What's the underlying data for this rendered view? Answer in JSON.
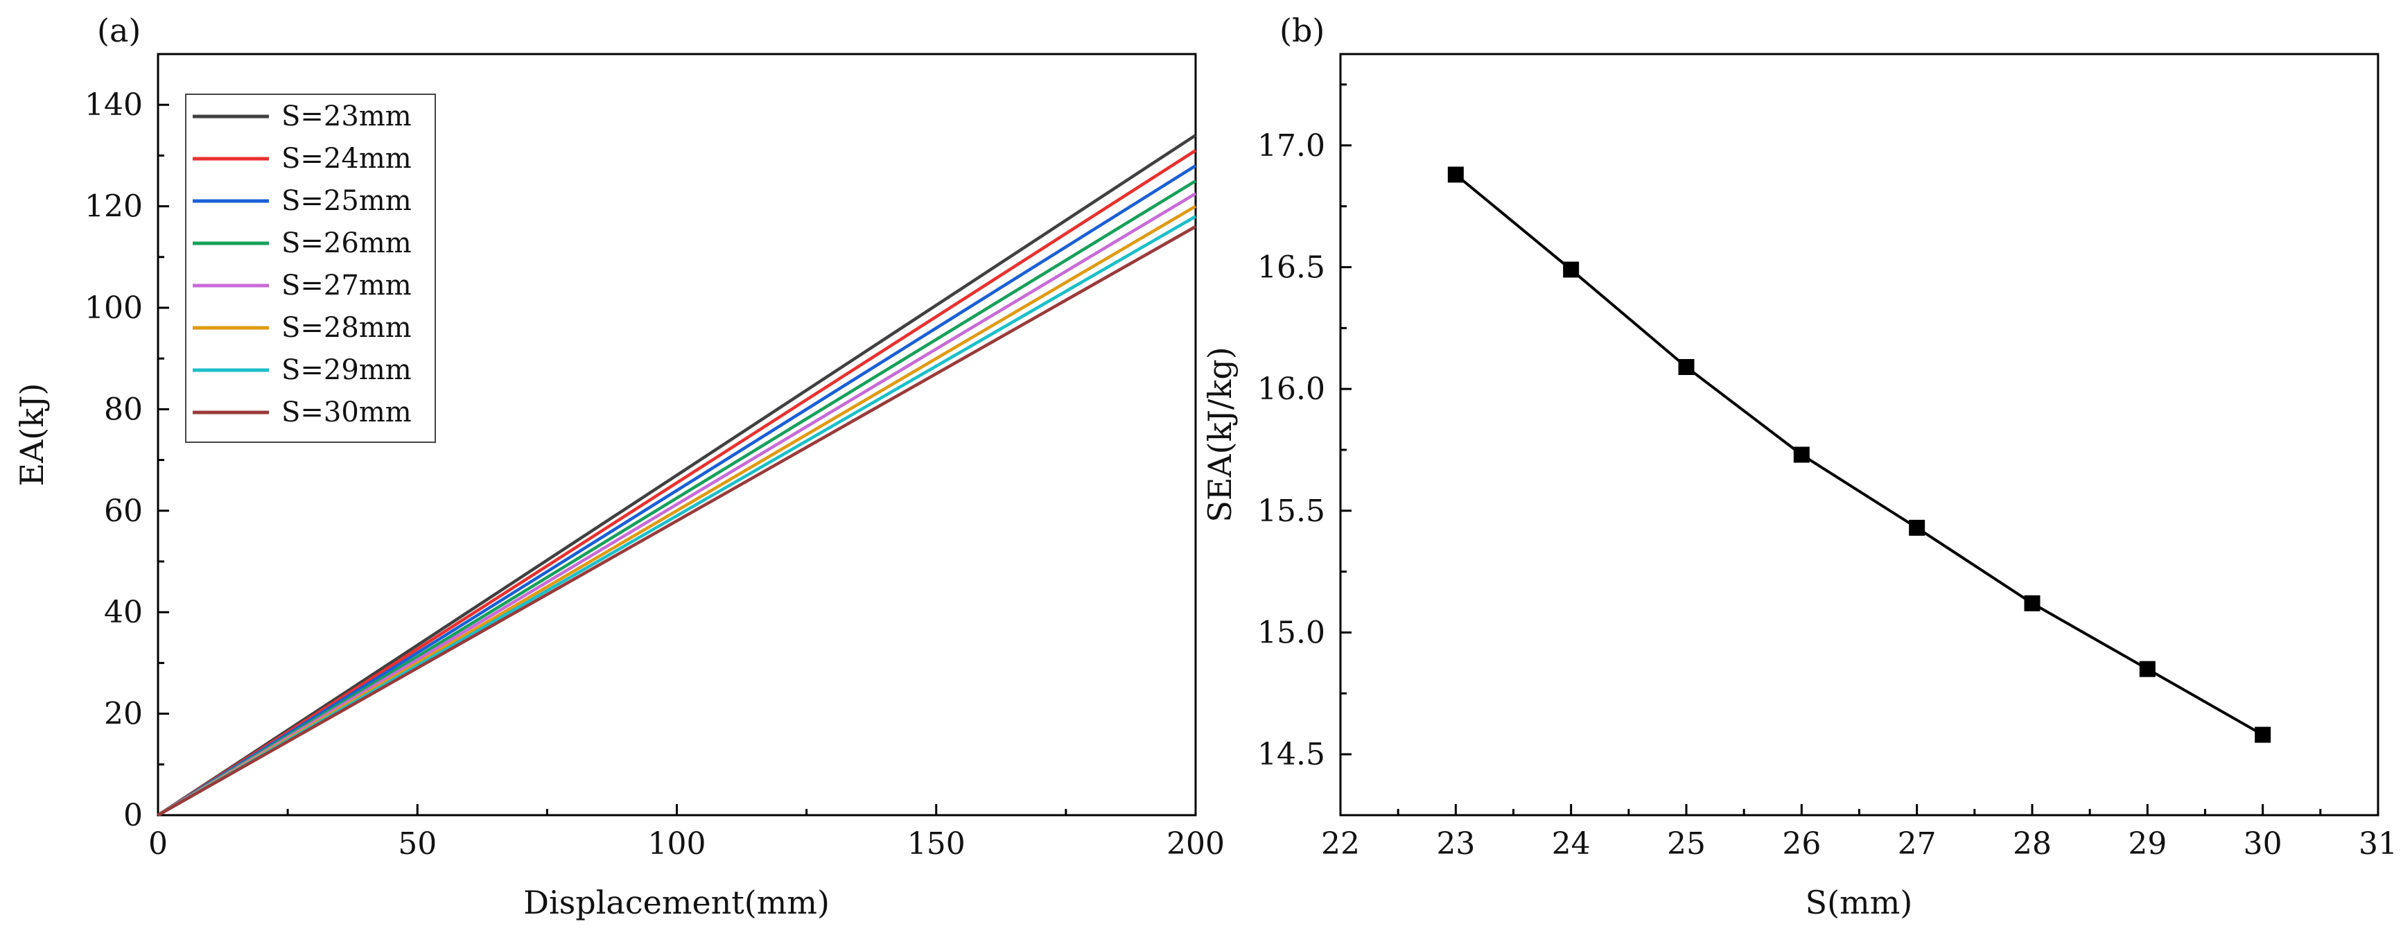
{
  "chart_data": [
    {
      "panel": "(a)",
      "type": "line",
      "xlabel": "Displacement(mm)",
      "ylabel": "EA(kJ)",
      "xlim": [
        0,
        200
      ],
      "ylim": [
        0,
        150
      ],
      "xticks": [
        0,
        50,
        100,
        150,
        200
      ],
      "yticks": [
        0,
        20,
        40,
        60,
        80,
        100,
        120,
        140
      ],
      "legend_position": "top-left",
      "series": [
        {
          "name": "S=23mm",
          "color": "#404040",
          "x": [
            0,
            200
          ],
          "y": [
            0,
            134
          ]
        },
        {
          "name": "S=24mm",
          "color": "#e8312f",
          "x": [
            0,
            200
          ],
          "y": [
            0,
            131
          ]
        },
        {
          "name": "S=25mm",
          "color": "#1a5fd6",
          "x": [
            0,
            200
          ],
          "y": [
            0,
            128
          ]
        },
        {
          "name": "S=26mm",
          "color": "#16a05a",
          "x": [
            0,
            200
          ],
          "y": [
            0,
            125
          ]
        },
        {
          "name": "S=27mm",
          "color": "#c86ad8",
          "x": [
            0,
            200
          ],
          "y": [
            0,
            122.5
          ]
        },
        {
          "name": "S=28mm",
          "color": "#e09a12",
          "x": [
            0,
            200
          ],
          "y": [
            0,
            120
          ]
        },
        {
          "name": "S=29mm",
          "color": "#1bbfc8",
          "x": [
            0,
            200
          ],
          "y": [
            0,
            118
          ]
        },
        {
          "name": "S=30mm",
          "color": "#9a3a3a",
          "x": [
            0,
            200
          ],
          "y": [
            0,
            116
          ]
        }
      ]
    },
    {
      "panel": "(b)",
      "type": "line",
      "xlabel": "S(mm)",
      "ylabel": "SEA(kJ/kg)",
      "xlim": [
        22,
        31
      ],
      "ylim": [
        14.25,
        17.375
      ],
      "xticks": [
        22,
        23,
        24,
        25,
        26,
        27,
        28,
        29,
        30,
        31
      ],
      "yticks": [
        "14.5",
        "15.0",
        "15.5",
        "16.0",
        "16.5",
        "17.0"
      ],
      "series": [
        {
          "name": "SEA",
          "color": "#000000",
          "marker": "square",
          "x": [
            23,
            24,
            25,
            26,
            27,
            28,
            29,
            30
          ],
          "y": [
            16.88,
            16.49,
            16.09,
            15.73,
            15.43,
            15.12,
            14.85,
            14.58
          ]
        }
      ]
    }
  ]
}
